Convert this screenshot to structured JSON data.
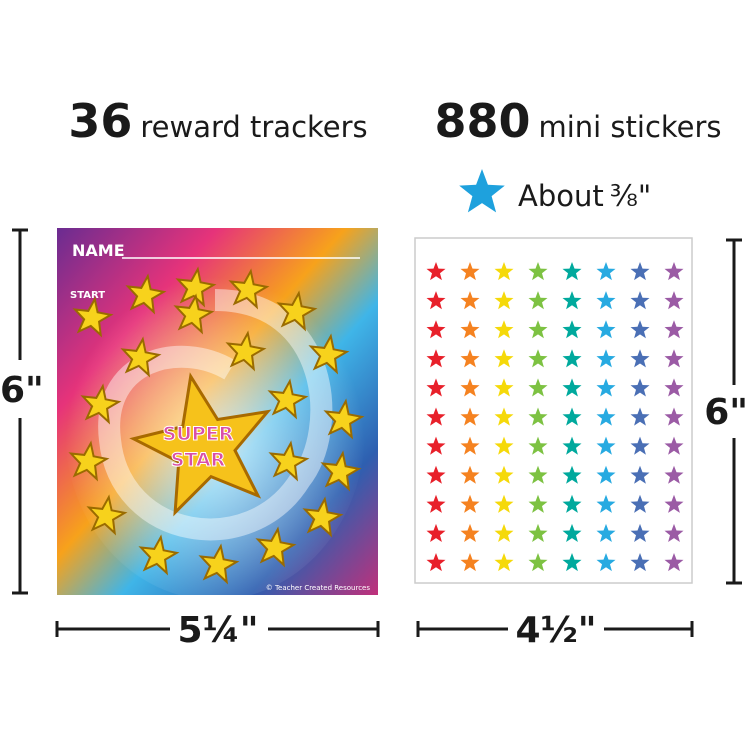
{
  "header": {
    "left": {
      "count": "36",
      "label": "reward trackers"
    },
    "right": {
      "count": "880",
      "label": "mini stickers"
    }
  },
  "size_note": {
    "text": "About",
    "fraction": "⅜\""
  },
  "tracker": {
    "name_label": "NAME",
    "start_label": "START",
    "center_line1": "SUPER",
    "center_line2": "STAR",
    "copyright": "© Teacher Created Resources"
  },
  "dimensions": {
    "left_height": "6\"",
    "left_width": "5¼\"",
    "right_height": "6\"",
    "right_width": "4½\""
  }
}
